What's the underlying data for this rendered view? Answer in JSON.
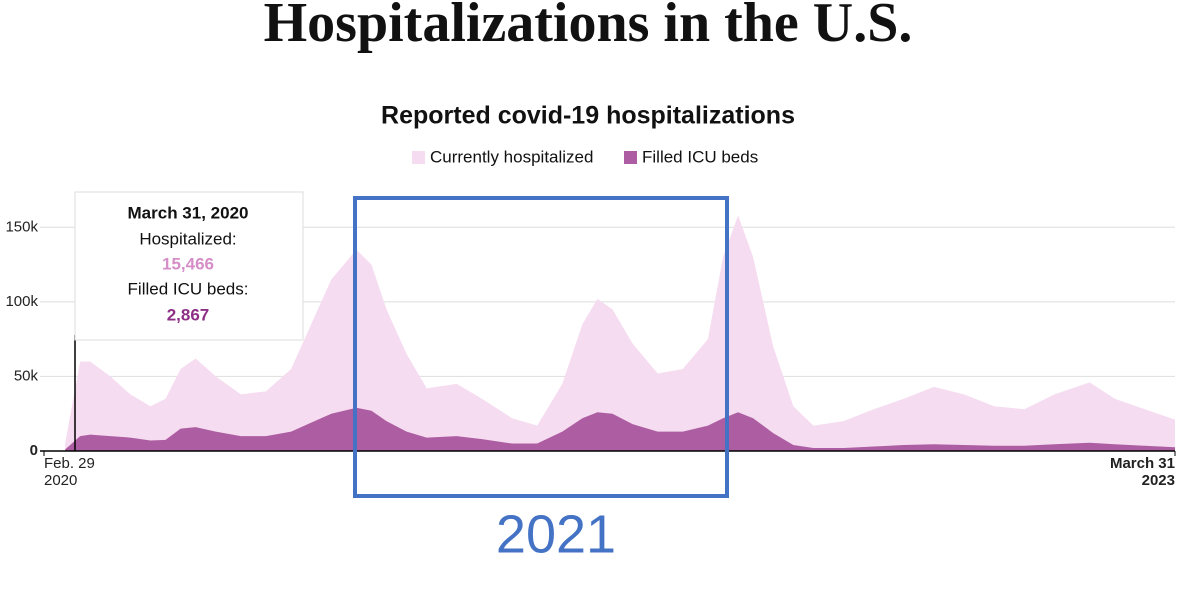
{
  "headline": "Hospitalizations in the U.S.",
  "chart_data": {
    "type": "area",
    "title": "Reported covid-19 hospitalizations",
    "x": [
      "2020-03-21",
      "2020-04-05",
      "2020-04-15",
      "2020-05-05",
      "2020-05-25",
      "2020-06-14",
      "2020-06-29",
      "2020-07-14",
      "2020-07-29",
      "2020-08-18",
      "2020-09-12",
      "2020-10-07",
      "2020-11-01",
      "2020-11-21",
      "2020-12-11",
      "2021-01-05",
      "2021-01-20",
      "2021-02-04",
      "2021-02-24",
      "2021-03-16",
      "2021-04-15",
      "2021-05-10",
      "2021-06-09",
      "2021-07-04",
      "2021-07-29",
      "2021-08-18",
      "2021-09-02",
      "2021-09-17",
      "2021-10-07",
      "2021-11-01",
      "2021-11-26",
      "2021-12-21",
      "2022-01-05",
      "2022-01-20",
      "2022-02-04",
      "2022-02-24",
      "2022-03-16",
      "2022-04-05",
      "2022-05-05",
      "2022-06-04",
      "2022-07-04",
      "2022-08-03",
      "2022-09-02",
      "2022-10-02",
      "2022-11-01",
      "2022-12-01",
      "2023-01-05",
      "2023-01-30",
      "2023-03-01",
      "2023-03-31"
    ],
    "series": [
      {
        "name": "Currently hospitalized",
        "color": "#f6dcf0",
        "values": [
          5000,
          60000,
          60000,
          50000,
          38000,
          30000,
          35000,
          55000,
          62000,
          50000,
          38000,
          40000,
          55000,
          85000,
          115000,
          135000,
          125000,
          95000,
          65000,
          42000,
          45000,
          35000,
          22000,
          17000,
          45000,
          85000,
          102000,
          95000,
          72000,
          52000,
          55000,
          75000,
          130000,
          158000,
          130000,
          70000,
          30000,
          17000,
          20000,
          28000,
          35000,
          43000,
          38000,
          30000,
          28000,
          38000,
          46000,
          35000,
          28000,
          21000
        ]
      },
      {
        "name": "Filled ICU beds",
        "color": "#ad5ea2",
        "values": [
          1000,
          10000,
          11000,
          10000,
          9000,
          7000,
          7500,
          15000,
          16000,
          13000,
          10000,
          10000,
          13000,
          19000,
          25000,
          29000,
          27000,
          20000,
          13000,
          9000,
          10000,
          8000,
          5000,
          5000,
          13000,
          22000,
          26000,
          25000,
          18000,
          13000,
          13000,
          17000,
          22000,
          26000,
          22000,
          12000,
          4000,
          2000,
          2000,
          3000,
          4000,
          4500,
          4000,
          3500,
          3500,
          4500,
          5500,
          4500,
          3500,
          2500
        ]
      }
    ],
    "xlim": [
      "2020-02-29",
      "2023-03-31"
    ],
    "xticks": [
      {
        "value": "2020-02-29",
        "label": [
          "Feb. 29",
          "2020"
        ]
      },
      {
        "value": "2023-03-31",
        "label": [
          "March 31",
          "2023"
        ]
      }
    ],
    "ylim": [
      0,
      175000
    ],
    "yticks": [
      0,
      {
        "value": 50000,
        "label": "50k"
      },
      {
        "value": 100000,
        "label": "100k"
      },
      {
        "value": 150000,
        "label": "150k"
      }
    ],
    "grid": true,
    "tooltip": {
      "date": "March 31, 2020",
      "hospitalized_label": "Hospitalized:",
      "hospitalized_value": "15,466",
      "icu_label": "Filled ICU beds:",
      "icu_value": "2,867"
    },
    "annotation": "2021"
  }
}
